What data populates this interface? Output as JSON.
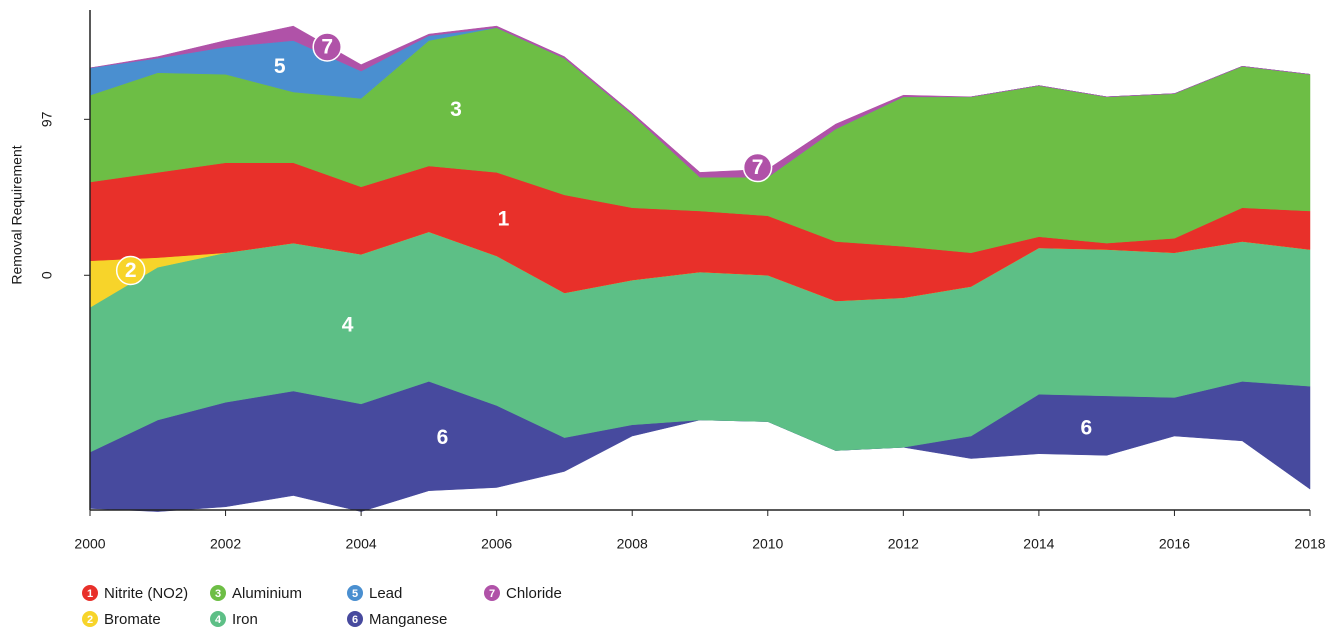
{
  "chart_data": {
    "type": "stream",
    "y_label": "Removal Requirement",
    "x": [
      2000,
      2001,
      2002,
      2003,
      2004,
      2005,
      2006,
      2007,
      2008,
      2009,
      2010,
      2011,
      2012,
      2013,
      2014,
      2015,
      2016,
      2017,
      2018
    ],
    "xlim": [
      2000,
      2018
    ],
    "xticks": [
      2000,
      2002,
      2004,
      2006,
      2008,
      2010,
      2012,
      2014,
      2016,
      2018
    ],
    "ylim": [
      -146,
      165
    ],
    "yticks": [
      0,
      97
    ],
    "baseline": [
      -145,
      -147,
      -144,
      -137,
      -147,
      -134,
      -132,
      -122,
      -100,
      -90,
      -91,
      -109,
      -107,
      -114,
      -111,
      -112,
      -100,
      -103,
      -133
    ],
    "series": [
      {
        "name": "Manganese",
        "badge": "6",
        "color": "#474a9e",
        "values": [
          35,
          57,
          65,
          65,
          67,
          68,
          51,
          21,
          7,
          0,
          0,
          0,
          0,
          14,
          37,
          37,
          24,
          37,
          64
        ]
      },
      {
        "name": "Iron",
        "badge": "4",
        "color": "#5dbf86",
        "values": [
          90,
          95,
          93,
          92,
          93,
          93,
          93,
          90,
          90,
          92,
          91,
          93,
          93,
          93,
          91,
          91,
          90,
          87,
          85
        ]
      },
      {
        "name": "Bromate",
        "badge": "2",
        "color": "#f7d42a",
        "values": [
          29,
          6,
          0,
          0,
          0,
          0,
          0,
          0,
          0,
          0,
          0,
          0,
          0,
          0,
          0,
          0,
          0,
          0,
          0
        ]
      },
      {
        "name": "Nitrite (NO2)",
        "badge": "1",
        "color": "#e8302a",
        "values": [
          49,
          53,
          56,
          50,
          42,
          41,
          52,
          61,
          45,
          38,
          37,
          37,
          32,
          21,
          7,
          4,
          9,
          21,
          24
        ]
      },
      {
        "name": "Aluminium",
        "badge": "3",
        "color": "#6dbe45",
        "values": [
          54,
          62,
          55,
          44,
          55,
          78,
          90,
          85,
          58,
          21,
          24,
          70,
          93,
          97,
          94,
          91,
          90,
          88,
          85
        ]
      },
      {
        "name": "Lead",
        "badge": "5",
        "color": "#4a8fd0",
        "values": [
          17,
          9,
          17,
          32,
          17,
          3,
          0,
          0,
          0,
          0,
          0,
          0,
          0,
          0,
          0,
          0,
          0,
          0,
          0
        ]
      },
      {
        "name": "Chloride",
        "badge": "7",
        "color": "#b052a8",
        "values": [
          0,
          1,
          4,
          9,
          4,
          1,
          1,
          1,
          1,
          3,
          5,
          3,
          1,
          0,
          0,
          0,
          0,
          0,
          0
        ]
      }
    ],
    "annotations": [
      {
        "label": "7",
        "x": 2003.5,
        "y": 142,
        "circled": true
      },
      {
        "label": "5",
        "x": 2002.8,
        "y": 130,
        "circled": false
      },
      {
        "label": "3",
        "x": 2005.4,
        "y": 103,
        "circled": false
      },
      {
        "label": "2",
        "x": 2000.6,
        "y": 3,
        "circled": true
      },
      {
        "label": "1",
        "x": 2006.1,
        "y": 35,
        "circled": false
      },
      {
        "label": "4",
        "x": 2003.8,
        "y": -31,
        "circled": false
      },
      {
        "label": "6",
        "x": 2005.2,
        "y": -101,
        "circled": false
      },
      {
        "label": "6",
        "x": 2014.7,
        "y": -95,
        "circled": false
      },
      {
        "label": "7",
        "x": 2009.85,
        "y": 67,
        "circled": true
      }
    ]
  }
}
